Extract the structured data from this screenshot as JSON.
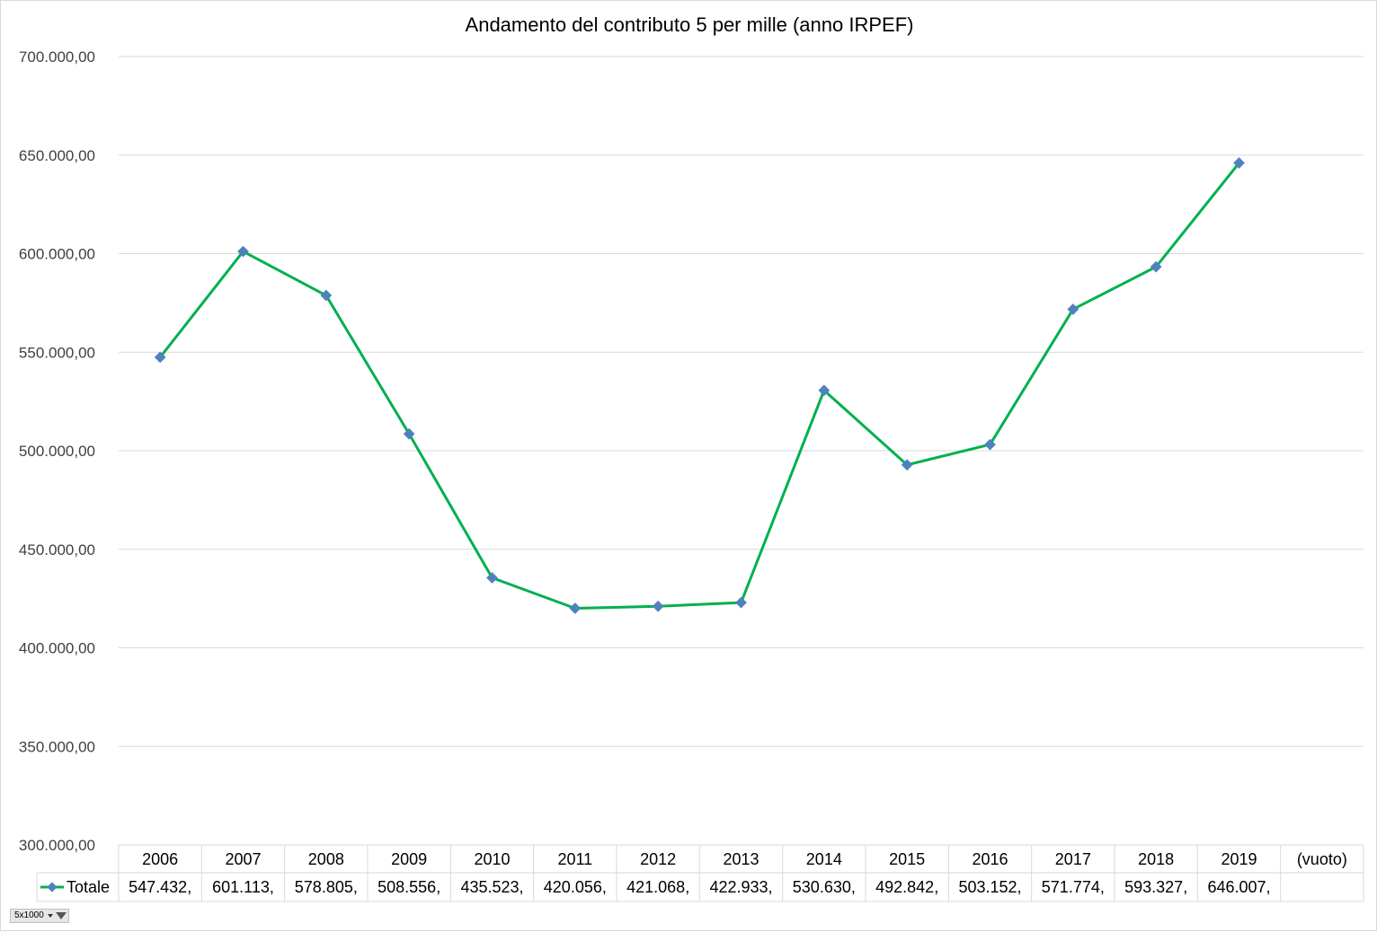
{
  "colors": {
    "line": "#00B050",
    "marker": "#4F81BD",
    "grid": "#D9D9D9"
  },
  "field_button": {
    "label": "5x1000"
  },
  "chart_data": {
    "type": "line",
    "title": "Andamento del contributo 5 per mille (anno IRPEF)",
    "xlabel": "",
    "ylabel": "",
    "ylim": [
      300000,
      700000
    ],
    "yticks": [
      300000,
      350000,
      400000,
      450000,
      500000,
      550000,
      600000,
      650000,
      700000
    ],
    "ytick_labels": [
      "300.000,00",
      "350.000,00",
      "400.000,00",
      "450.000,00",
      "500.000,00",
      "550.000,00",
      "600.000,00",
      "650.000,00",
      "700.000,00"
    ],
    "grid": true,
    "legend_position": "data-table",
    "categories": [
      "2006",
      "2007",
      "2008",
      "2009",
      "2010",
      "2011",
      "2012",
      "2013",
      "2014",
      "2015",
      "2016",
      "2017",
      "2018",
      "2019",
      "(vuoto)"
    ],
    "series": [
      {
        "name": "Totale",
        "values": [
          547432,
          601113,
          578805,
          508556,
          435523,
          420056,
          421068,
          422933,
          530630,
          492842,
          503152,
          571774,
          593327,
          646007,
          null
        ],
        "table_labels": [
          "547.432,",
          "601.113,",
          "578.805,",
          "508.556,",
          "435.523,",
          "420.056,",
          "421.068,",
          "422.933,",
          "530.630,",
          "492.842,",
          "503.152,",
          "571.774,",
          "593.327,",
          "646.007,",
          ""
        ]
      }
    ]
  }
}
